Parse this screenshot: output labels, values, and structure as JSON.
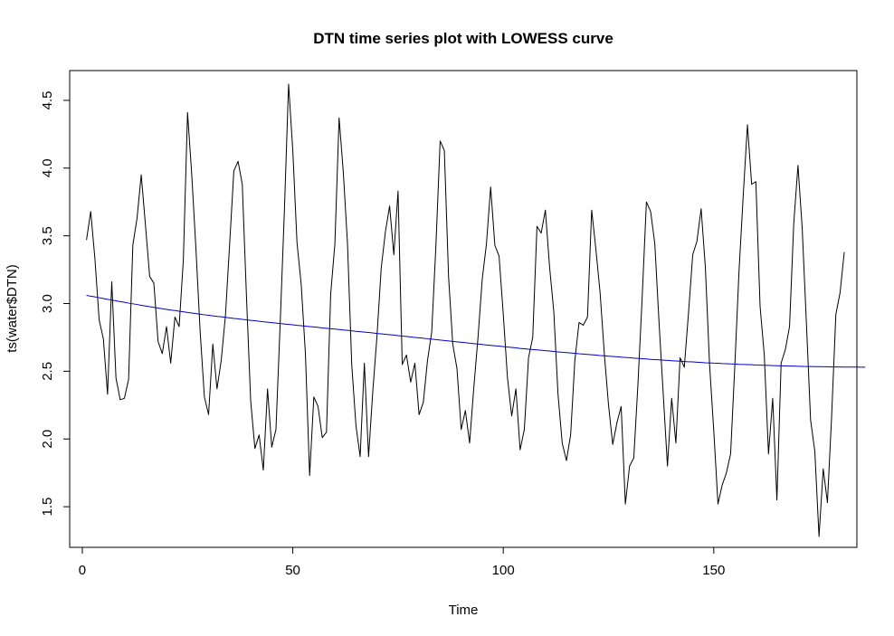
{
  "chart_data": {
    "type": "line",
    "title": "DTN time series plot with LOWESS curve",
    "xlabel": "Time",
    "ylabel": "ts(water$DTN)",
    "xlim": [
      -3,
      184
    ],
    "ylim": [
      1.2,
      4.72
    ],
    "x_ticks": [
      0,
      50,
      100,
      150
    ],
    "x_tick_labels": [
      "0",
      "50",
      "100",
      "150"
    ],
    "y_ticks": [
      1.5,
      2.0,
      2.5,
      3.0,
      3.5,
      4.0,
      4.5
    ],
    "y_tick_labels": [
      "1.5",
      "2.0",
      "2.5",
      "3.0",
      "3.5",
      "4.0",
      "4.5"
    ],
    "grid": false,
    "legend": "none",
    "series": [
      {
        "color": "#000000",
        "x_start": 1,
        "x_step": 1,
        "values": [
          3.47,
          3.68,
          3.33,
          2.88,
          2.74,
          2.33,
          3.16,
          2.45,
          2.29,
          2.3,
          2.44,
          3.43,
          3.63,
          3.95,
          3.58,
          3.2,
          3.15,
          2.72,
          2.63,
          2.83,
          2.56,
          2.9,
          2.83,
          3.32,
          4.41,
          3.95,
          3.4,
          2.79,
          2.31,
          2.18,
          2.7,
          2.37,
          2.58,
          2.91,
          3.44,
          3.98,
          4.05,
          3.88,
          3.05,
          2.28,
          1.93,
          2.03,
          1.77,
          2.37,
          1.94,
          2.07,
          2.85,
          3.68,
          4.62,
          4.13,
          3.45,
          3.14,
          2.63,
          1.73,
          2.31,
          2.24,
          2.01,
          2.05,
          3.07,
          3.44,
          4.37,
          3.97,
          3.44,
          2.55,
          2.1,
          1.87,
          2.56,
          1.87,
          2.35,
          2.76,
          3.26,
          3.53,
          3.72,
          3.36,
          3.83,
          2.55,
          2.62,
          2.42,
          2.56,
          2.18,
          2.27,
          2.58,
          2.79,
          3.43,
          4.2,
          4.13,
          3.2,
          2.7,
          2.52,
          2.07,
          2.21,
          1.97,
          2.38,
          2.75,
          3.18,
          3.44,
          3.86,
          3.43,
          3.35,
          2.92,
          2.45,
          2.17,
          2.37,
          1.92,
          2.07,
          2.6,
          2.75,
          3.57,
          3.52,
          3.69,
          3.27,
          2.94,
          2.33,
          1.97,
          1.84,
          2.03,
          2.58,
          2.86,
          2.84,
          2.9,
          3.69,
          3.4,
          3.08,
          2.63,
          2.25,
          1.96,
          2.12,
          2.24,
          1.52,
          1.8,
          1.86,
          2.41,
          3.05,
          3.75,
          3.68,
          3.44,
          2.86,
          2.33,
          1.8,
          2.3,
          1.97,
          2.6,
          2.53,
          2.93,
          3.36,
          3.46,
          3.7,
          3.27,
          2.55,
          2.06,
          1.52,
          1.66,
          1.75,
          1.89,
          2.54,
          3.24,
          3.8,
          4.32,
          3.88,
          3.9,
          2.98,
          2.62,
          1.89,
          2.3,
          1.55,
          2.56,
          2.66,
          2.83,
          3.59,
          4.02,
          3.56,
          2.86,
          2.14,
          1.91,
          1.28,
          1.78,
          1.53,
          2.17,
          2.92,
          3.08,
          3.38
        ]
      },
      {
        "color": "#0000cc",
        "x_start": 1,
        "x_step": 1,
        "values": [
          3.06,
          3.054,
          3.049,
          3.043,
          3.037,
          3.031,
          3.026,
          3.02,
          3.014,
          3.009,
          3.003,
          2.998,
          2.993,
          2.987,
          2.982,
          2.977,
          2.972,
          2.967,
          2.962,
          2.957,
          2.952,
          2.948,
          2.943,
          2.939,
          2.934,
          2.93,
          2.926,
          2.921,
          2.917,
          2.913,
          2.909,
          2.905,
          2.902,
          2.898,
          2.894,
          2.89,
          2.887,
          2.883,
          2.88,
          2.876,
          2.873,
          2.869,
          2.866,
          2.862,
          2.859,
          2.856,
          2.852,
          2.849,
          2.846,
          2.843,
          2.839,
          2.836,
          2.833,
          2.83,
          2.827,
          2.824,
          2.82,
          2.817,
          2.814,
          2.811,
          2.808,
          2.805,
          2.802,
          2.799,
          2.795,
          2.792,
          2.789,
          2.786,
          2.783,
          2.779,
          2.776,
          2.773,
          2.77,
          2.767,
          2.763,
          2.76,
          2.757,
          2.753,
          2.75,
          2.747,
          2.744,
          2.74,
          2.737,
          2.734,
          2.73,
          2.727,
          2.724,
          2.72,
          2.717,
          2.714,
          2.711,
          2.707,
          2.704,
          2.701,
          2.698,
          2.694,
          2.691,
          2.688,
          2.685,
          2.682,
          2.679,
          2.676,
          2.673,
          2.669,
          2.666,
          2.663,
          2.66,
          2.658,
          2.655,
          2.652,
          2.649,
          2.646,
          2.643,
          2.64,
          2.638,
          2.635,
          2.632,
          2.629,
          2.627,
          2.624,
          2.622,
          2.619,
          2.616,
          2.614,
          2.611,
          2.609,
          2.607,
          2.604,
          2.602,
          2.6,
          2.597,
          2.595,
          2.593,
          2.591,
          2.588,
          2.586,
          2.584,
          2.582,
          2.58,
          2.578,
          2.576,
          2.574,
          2.572,
          2.57,
          2.569,
          2.567,
          2.565,
          2.563,
          2.562,
          2.56,
          2.559,
          2.557,
          2.556,
          2.554,
          2.553,
          2.551,
          2.55,
          2.549,
          2.548,
          2.546,
          2.545,
          2.544,
          2.543,
          2.542,
          2.541,
          2.54,
          2.539,
          2.538,
          2.538,
          2.537,
          2.536,
          2.535,
          2.535,
          2.534,
          2.534,
          2.533,
          2.533,
          2.532,
          2.532,
          2.532,
          2.531,
          2.531,
          2.531,
          2.531,
          2.53,
          2.53
        ]
      }
    ]
  }
}
